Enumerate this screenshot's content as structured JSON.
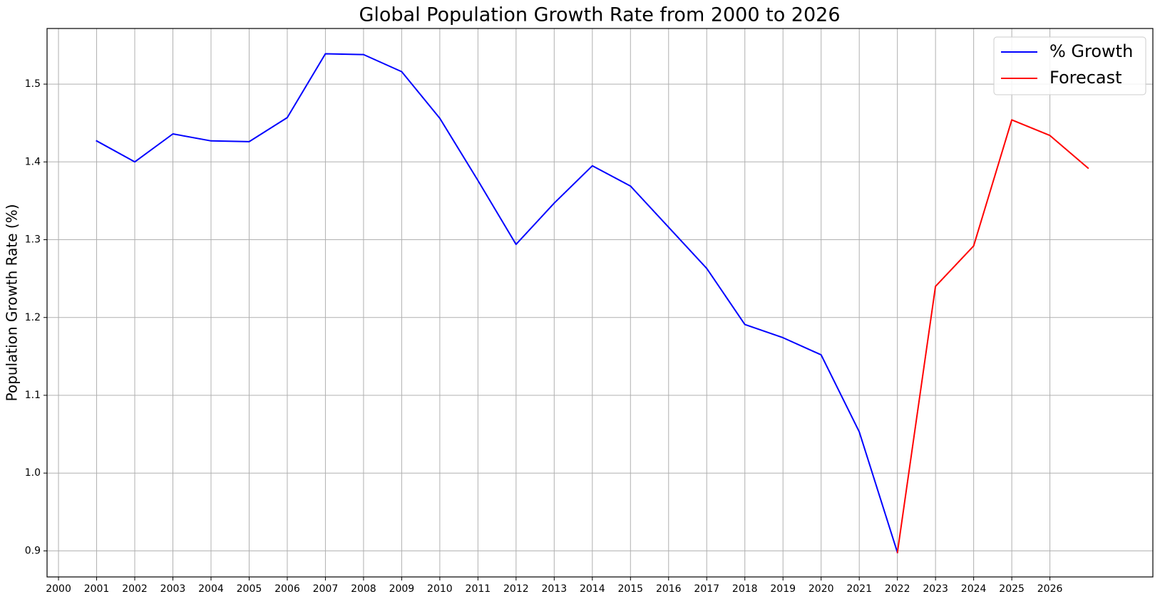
{
  "chart_data": {
    "type": "line",
    "title": "Global Population Growth Rate from 2000 to 2026",
    "xlabel": "",
    "ylabel": "Population Growth Rate (%)",
    "x_ticks": [
      "2000",
      "2001",
      "2002",
      "2003",
      "2004",
      "2005",
      "2006",
      "2007",
      "2008",
      "2009",
      "2010",
      "2011",
      "2012",
      "2013",
      "2014",
      "2015",
      "2016",
      "2017",
      "2018",
      "2019",
      "2020",
      "2021",
      "2022",
      "2023",
      "2024",
      "2025",
      "2026"
    ],
    "y_ticks": [
      "0.9",
      "1.0",
      "1.1",
      "1.2",
      "1.3",
      "1.4",
      "1.5"
    ],
    "xlim": [
      1999.7,
      2028.7
    ],
    "ylim": [
      0.8665,
      1.5715
    ],
    "grid": true,
    "legend_position": "top-right",
    "series": [
      {
        "name": "% Growth",
        "color": "#0000ff",
        "points": [
          [
            2001,
            1.427
          ],
          [
            2002,
            1.4
          ],
          [
            2003,
            1.436
          ],
          [
            2004,
            1.427
          ],
          [
            2005,
            1.426
          ],
          [
            2006,
            1.457
          ],
          [
            2007,
            1.539
          ],
          [
            2008,
            1.538
          ],
          [
            2009,
            1.516
          ],
          [
            2010,
            1.456
          ],
          [
            2011,
            1.376
          ],
          [
            2012,
            1.294
          ],
          [
            2013,
            1.347
          ],
          [
            2014,
            1.395
          ],
          [
            2015,
            1.369
          ],
          [
            2016,
            1.316
          ],
          [
            2017,
            1.263
          ],
          [
            2018,
            1.191
          ],
          [
            2019,
            1.174
          ],
          [
            2020,
            1.152
          ],
          [
            2021,
            1.053
          ],
          [
            2022,
            0.898
          ]
        ]
      },
      {
        "name": "Forecast",
        "color": "#ff0000",
        "points": [
          [
            2022,
            0.898
          ],
          [
            2023,
            1.24
          ],
          [
            2024,
            1.292
          ],
          [
            2025,
            1.454
          ],
          [
            2026,
            1.434
          ],
          [
            2027,
            1.392
          ]
        ]
      }
    ]
  }
}
